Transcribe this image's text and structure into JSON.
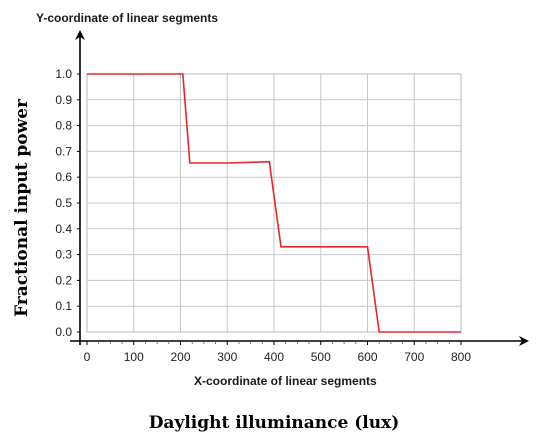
{
  "chart_data": {
    "type": "line",
    "title": "",
    "inner_ylabel": "Y-coordinate of linear segments",
    "inner_xlabel": "X-coordinate of linear segments",
    "outer_ylabel": "Fractional input power",
    "outer_xlabel": "Daylight illuminance (lux)",
    "xlim": [
      0,
      800
    ],
    "ylim": [
      0,
      1.0
    ],
    "x_ticks": [
      0,
      100,
      200,
      300,
      400,
      500,
      600,
      700,
      800
    ],
    "x_tick_labels": [
      "0",
      "100",
      "200",
      "300",
      "400",
      "500",
      "600",
      "700",
      "800"
    ],
    "y_ticks": [
      0,
      0.1,
      0.2,
      0.3,
      0.4,
      0.5,
      0.6,
      0.7,
      0.8,
      0.9,
      1.0
    ],
    "y_tick_labels": [
      "0.0",
      "0.1",
      "0.2",
      "0.3",
      "0.4",
      "0.5",
      "0.6",
      "0.7",
      "0.8",
      "0.9",
      "1.0"
    ],
    "grid": true,
    "legend": "none",
    "series": [
      {
        "color": "#e8262b",
        "points": [
          [
            0,
            1.0
          ],
          [
            205,
            1.0
          ],
          [
            220,
            0.655
          ],
          [
            300,
            0.655
          ],
          [
            390,
            0.66
          ],
          [
            415,
            0.33
          ],
          [
            600,
            0.33
          ],
          [
            625,
            0.0
          ],
          [
            800,
            0.0
          ]
        ]
      }
    ],
    "colors": {
      "grid": "#c8c8c8",
      "axis": "#000000",
      "line": "#e8262b"
    }
  }
}
